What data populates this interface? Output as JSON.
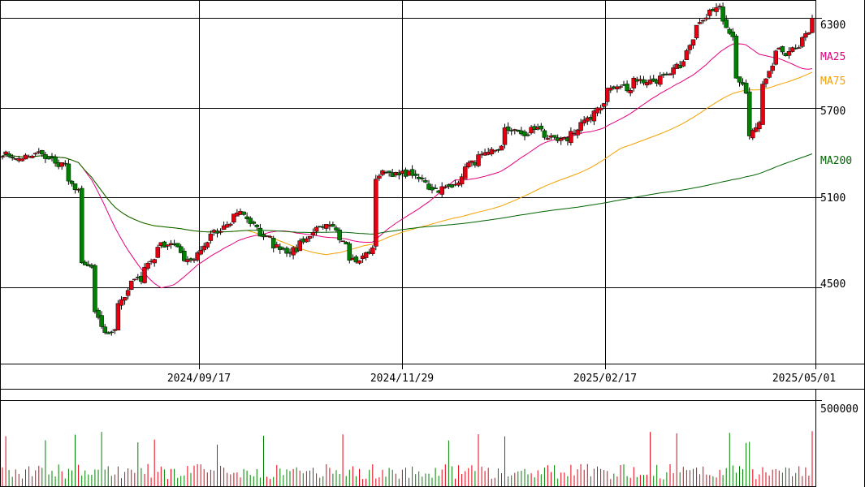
{
  "chart_data": {
    "type": "candlestick",
    "price_ticks": [
      {
        "value": 6300,
        "label": "6300"
      },
      {
        "value": 5700,
        "label": "5700"
      },
      {
        "value": 5100,
        "label": "5100"
      },
      {
        "value": 4500,
        "label": "4500"
      }
    ],
    "price_range": [
      3990,
      6420
    ],
    "date_ticks": [
      "2024/09/17",
      "2024/11/29",
      "2025/02/17",
      "2025/05/01"
    ],
    "legend": [
      {
        "name": "MA25",
        "color": "#e6007e",
        "value": 6205
      },
      {
        "name": "MA75",
        "color": "#f5a000",
        "value": 6030
      },
      {
        "name": "MA200",
        "color": "#006400",
        "value": 5460
      }
    ],
    "volume_tick": {
      "value": 500000,
      "label": "500000"
    },
    "volume_range": [
      0,
      560000
    ],
    "colors": {
      "up": "#e60012",
      "down": "#008000",
      "grid": "#000000"
    },
    "ohlc_anchors": [
      [
        5395,
        5395
      ],
      [
        5370,
        5350
      ],
      [
        5380,
        5360
      ],
      [
        5410,
        5380
      ],
      [
        5350,
        5320
      ],
      [
        5330,
        5200
      ],
      [
        5150,
        4650
      ],
      [
        4630,
        4350
      ],
      [
        4200,
        4150
      ],
      [
        4260,
        4400
      ],
      [
        4480,
        4540
      ],
      [
        4560,
        4640
      ],
      [
        4700,
        4780
      ],
      [
        4790,
        4810
      ],
      [
        4720,
        4690
      ],
      [
        4690,
        4720
      ],
      [
        4800,
        4870
      ],
      [
        4860,
        4900
      ],
      [
        4930,
        4990
      ],
      [
        4990,
        4950
      ],
      [
        4900,
        4850
      ],
      [
        4820,
        4780
      ],
      [
        4760,
        4740
      ],
      [
        4750,
        4800
      ],
      [
        4840,
        4880
      ],
      [
        4890,
        4910
      ],
      [
        4890,
        4850
      ],
      [
        4790,
        4700
      ],
      [
        4660,
        4710
      ],
      [
        4760,
        5230
      ],
      [
        5290,
        5270
      ],
      [
        5240,
        5260
      ],
      [
        5260,
        5230
      ],
      [
        5210,
        5170
      ],
      [
        5150,
        5160
      ],
      [
        5170,
        5200
      ],
      [
        5230,
        5320
      ],
      [
        5340,
        5370
      ],
      [
        5390,
        5410
      ],
      [
        5440,
        5550
      ],
      [
        5560,
        5530
      ],
      [
        5510,
        5560
      ],
      [
        5560,
        5520
      ],
      [
        5480,
        5470
      ],
      [
        5490,
        5530
      ],
      [
        5560,
        5600
      ],
      [
        5630,
        5690
      ],
      [
        5730,
        5830
      ],
      [
        5830,
        5850
      ],
      [
        5820,
        5900
      ],
      [
        5870,
        5880
      ],
      [
        5880,
        5900
      ],
      [
        5910,
        5950
      ],
      [
        6000,
        6050
      ],
      [
        6170,
        6270
      ],
      [
        6330,
        6370
      ],
      [
        6360,
        6300
      ],
      [
        6140,
        5920
      ],
      [
        5780,
        5490
      ],
      [
        5620,
        5860
      ],
      [
        5970,
        6100
      ],
      [
        6060,
        6080
      ],
      [
        6120,
        6170
      ],
      [
        6210,
        6300
      ]
    ]
  }
}
